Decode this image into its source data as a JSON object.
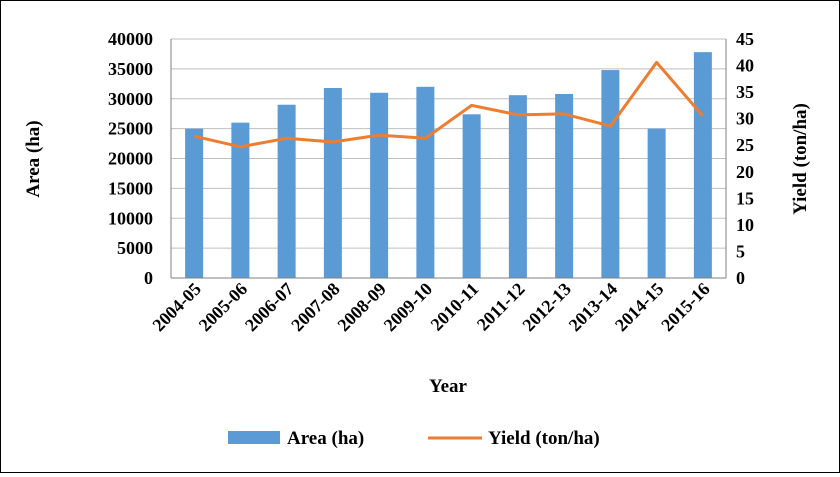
{
  "chart_data": {
    "type": "bar",
    "categories": [
      "2004-05",
      "2005-06",
      "2006-07",
      "2007-08",
      "2008-09",
      "2009-10",
      "2010-11",
      "2011-12",
      "2012-13",
      "2013-14",
      "2014-15",
      "2015-16"
    ],
    "series": [
      {
        "name": "Area (ha)",
        "type": "bar",
        "axis": "left",
        "color": "#5B9BD5",
        "values": [
          25000,
          26000,
          29000,
          31800,
          31000,
          32000,
          27400,
          30600,
          30800,
          34800,
          25000,
          37800
        ]
      },
      {
        "name": "Yield (ton/ha)",
        "type": "line",
        "axis": "right",
        "color": "#ED7D31",
        "values": [
          26.7,
          24.7,
          26.3,
          25.6,
          26.9,
          26.3,
          32.5,
          30.7,
          30.9,
          28.6,
          40.6,
          30.5
        ]
      }
    ],
    "xlabel": "Year",
    "ylabel": "Area (ha)",
    "y2label": "Yield (ton/ha)",
    "ylim": [
      0,
      40000
    ],
    "y2lim": [
      0,
      45
    ],
    "yticks": [
      "0",
      "5000",
      "10000",
      "15000",
      "20000",
      "25000",
      "30000",
      "35000",
      "40000"
    ],
    "y2ticks": [
      "0",
      "5",
      "10",
      "15",
      "20",
      "25",
      "30",
      "35",
      "40",
      "45"
    ],
    "grid": true,
    "legend": "bottom"
  }
}
